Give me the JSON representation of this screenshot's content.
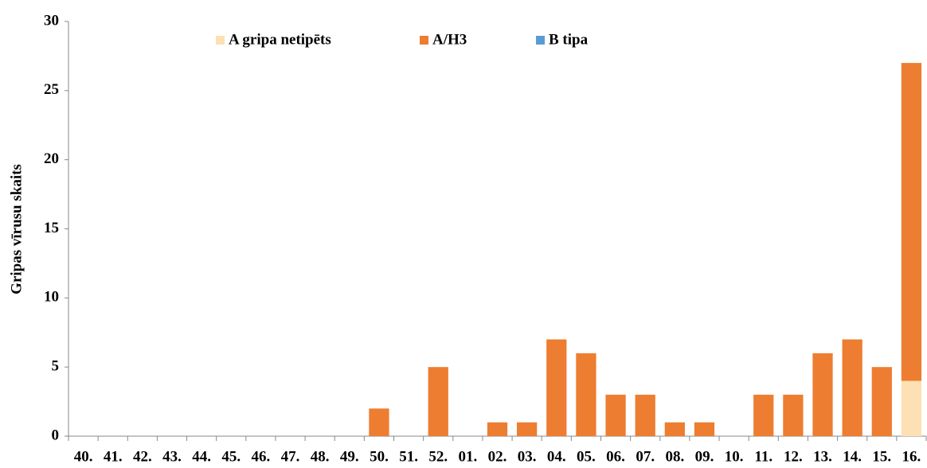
{
  "chart_data": {
    "type": "stacked_bar",
    "categories": [
      "40.",
      "41.",
      "42.",
      "43.",
      "44.",
      "45.",
      "46.",
      "47.",
      "48.",
      "49.",
      "50.",
      "51.",
      "52.",
      "01.",
      "02.",
      "03.",
      "04.",
      "05.",
      "06.",
      "07.",
      "08.",
      "09.",
      "10.",
      "11.",
      "12.",
      "13.",
      "14.",
      "15.",
      "16."
    ],
    "y_label": "Gripas vīrusu skaits",
    "series": [
      {
        "name": "A gripa netipēts",
        "color": "#fde0b4",
        "values": [
          0,
          0,
          0,
          0,
          0,
          0,
          0,
          0,
          0,
          0,
          0,
          0,
          0,
          0,
          0,
          0,
          0,
          0,
          0,
          0,
          0,
          0,
          0,
          0,
          0,
          0,
          0,
          0,
          4
        ]
      },
      {
        "name": "A/H3",
        "color": "#ed7d31",
        "values": [
          0,
          0,
          0,
          0,
          0,
          0,
          0,
          0,
          0,
          0,
          2,
          0,
          5,
          0,
          1,
          1,
          7,
          6,
          3,
          3,
          1,
          1,
          0,
          3,
          3,
          6,
          7,
          5,
          23
        ]
      },
      {
        "name": "B tipa",
        "color": "#5b9bd5",
        "values": [
          0,
          0,
          0,
          0,
          0,
          0,
          0,
          0,
          0,
          0,
          0,
          0,
          0,
          0,
          0,
          0,
          0,
          0,
          0,
          0,
          0,
          0,
          0,
          0,
          0,
          0,
          0,
          0,
          0
        ]
      }
    ],
    "ylim": [
      0,
      30
    ],
    "yticks": [
      0,
      5,
      10,
      15,
      20,
      25,
      30
    ]
  }
}
